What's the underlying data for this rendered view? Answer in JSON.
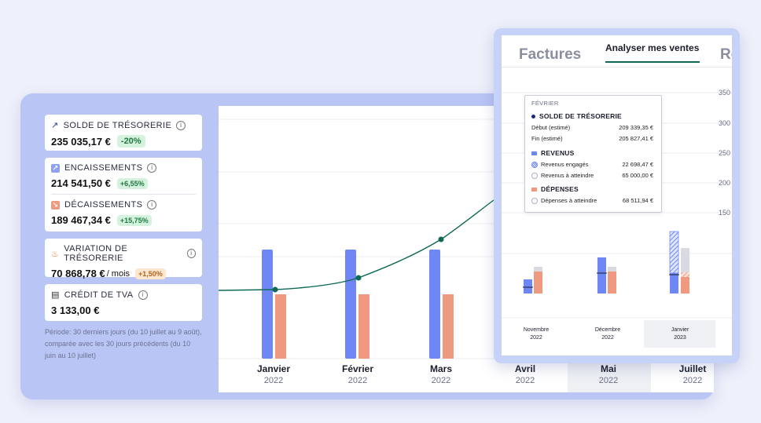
{
  "kpis": {
    "solde": {
      "title": "SOLDE DE TRÉSORERIE",
      "value": "235 035,17 €",
      "badge": "-20%"
    },
    "encaissements": {
      "title": "ENCAISSEMENTS",
      "value": "214 541,50 €",
      "badge": "+6,55%"
    },
    "decaissements": {
      "title": "DÉCAISSEMENTS",
      "value": "189 467,34 €",
      "badge": "+15,75%"
    },
    "variation": {
      "title": "VARIATION DE TRÉSORERIE",
      "value": "70 868,78 €",
      "suffix": "/ mois",
      "badge": "+1,50%"
    },
    "tva": {
      "title": "CRÉDIT DE TVA",
      "value": "3 133,00 €"
    }
  },
  "period_note": "Période: 30 derniers jours (du 10 juillet au 9 août), comparée avec les 30 jours précédents (du 10 juin au 10 juillet)",
  "main_chart": {
    "months": [
      {
        "label": "Janvier",
        "year": "2022"
      },
      {
        "label": "Février",
        "year": "2022"
      },
      {
        "label": "Mars",
        "year": "2022"
      },
      {
        "label": "Avril",
        "year": "2022"
      },
      {
        "label": "Mai",
        "year": "2022"
      },
      {
        "label": "Juillet",
        "year": "2022"
      }
    ]
  },
  "popup": {
    "tabs": {
      "factures": "Factures",
      "analyser": "Analyser mes ventes",
      "partial": "Re"
    },
    "yticks": [
      "350",
      "300",
      "250",
      "200",
      "150 I"
    ],
    "months": [
      {
        "label": "Novembre",
        "year": "2022"
      },
      {
        "label": "Décembre",
        "year": "2022"
      },
      {
        "label": "Janvier",
        "year": "2023"
      }
    ],
    "tooltip": {
      "month": "FÉVRIER",
      "solde_title": "SOLDE DE TRÉSORERIE",
      "debut_label": "Début (estimé)",
      "debut_value": "209 339,35 €",
      "fin_label": "Fin (estimé)",
      "fin_value": "205 827,41 €",
      "revenus_title": "REVENUS",
      "engages_label": "Revenus engagés",
      "engages_value": "22 698,47 €",
      "atteindre_label": "Revenus à atteindre",
      "atteindre_value": "65 000,00 €",
      "depenses_title": "DÉPENSES",
      "dep_label": "Dépenses à atteindre",
      "dep_value": "68 511,94 €"
    }
  },
  "colors": {
    "blue": "#6f87f4",
    "salmon": "#ef9a80",
    "line": "#0f6a55",
    "card": "#b9c5f5"
  }
}
